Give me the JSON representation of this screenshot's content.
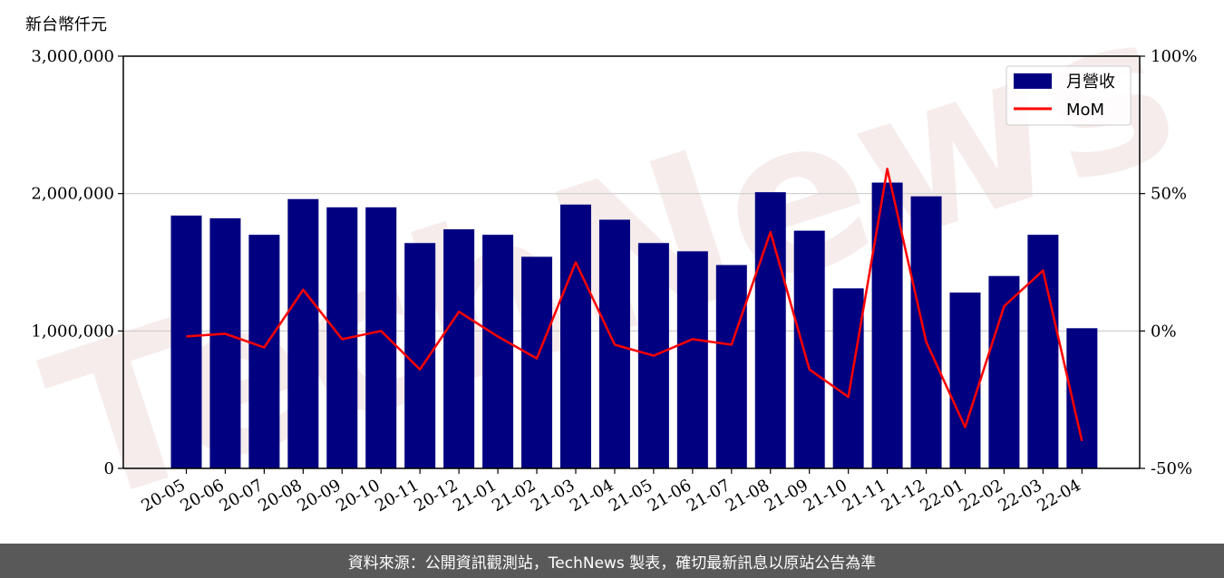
{
  "chart_data": {
    "type": "bar",
    "y_unit_label": "新台幣仟元",
    "categories": [
      "20-05",
      "20-06",
      "20-07",
      "20-08",
      "20-09",
      "20-10",
      "20-11",
      "20-12",
      "21-01",
      "21-02",
      "21-03",
      "21-04",
      "21-05",
      "21-06",
      "21-07",
      "21-08",
      "21-09",
      "21-10",
      "21-11",
      "21-12",
      "22-01",
      "22-02",
      "22-03",
      "22-04"
    ],
    "series": [
      {
        "name": "月營收",
        "type": "bar",
        "axis": "left",
        "color": "#000080",
        "values": [
          1840000,
          1820000,
          1700000,
          1960000,
          1900000,
          1900000,
          1640000,
          1740000,
          1700000,
          1540000,
          1920000,
          1810000,
          1640000,
          1580000,
          1480000,
          2010000,
          1730000,
          1310000,
          2080000,
          1980000,
          1280000,
          1400000,
          1700000,
          1020000
        ]
      },
      {
        "name": "MoM",
        "type": "line",
        "axis": "right",
        "color": "#ff0000",
        "values": [
          -2,
          -1,
          -6,
          15,
          -3,
          0,
          -14,
          7,
          -2,
          -10,
          25,
          -5,
          -9,
          -3,
          -5,
          36,
          -14,
          -24,
          59,
          -4,
          -35,
          9,
          22,
          -40
        ]
      }
    ],
    "y_left": {
      "ylim": [
        0,
        3000000
      ],
      "ticks": [
        0,
        1000000,
        2000000,
        3000000
      ],
      "tick_labels": [
        "0",
        "1,000,000",
        "2,000,000",
        "3,000,000"
      ]
    },
    "y_right": {
      "ylim": [
        -50,
        100
      ],
      "ticks": [
        -50,
        0,
        50,
        100
      ],
      "tick_labels": [
        "-50%",
        "0%",
        "50%",
        "100%"
      ]
    },
    "grid": "horizontal",
    "legend": {
      "position": "top-right",
      "entries": [
        "月營收",
        "MoM"
      ]
    }
  },
  "watermark": "TechNews",
  "footer": "資料來源：公開資訊觀測站，TechNews 製表，確切最新訊息以原站公告為準"
}
